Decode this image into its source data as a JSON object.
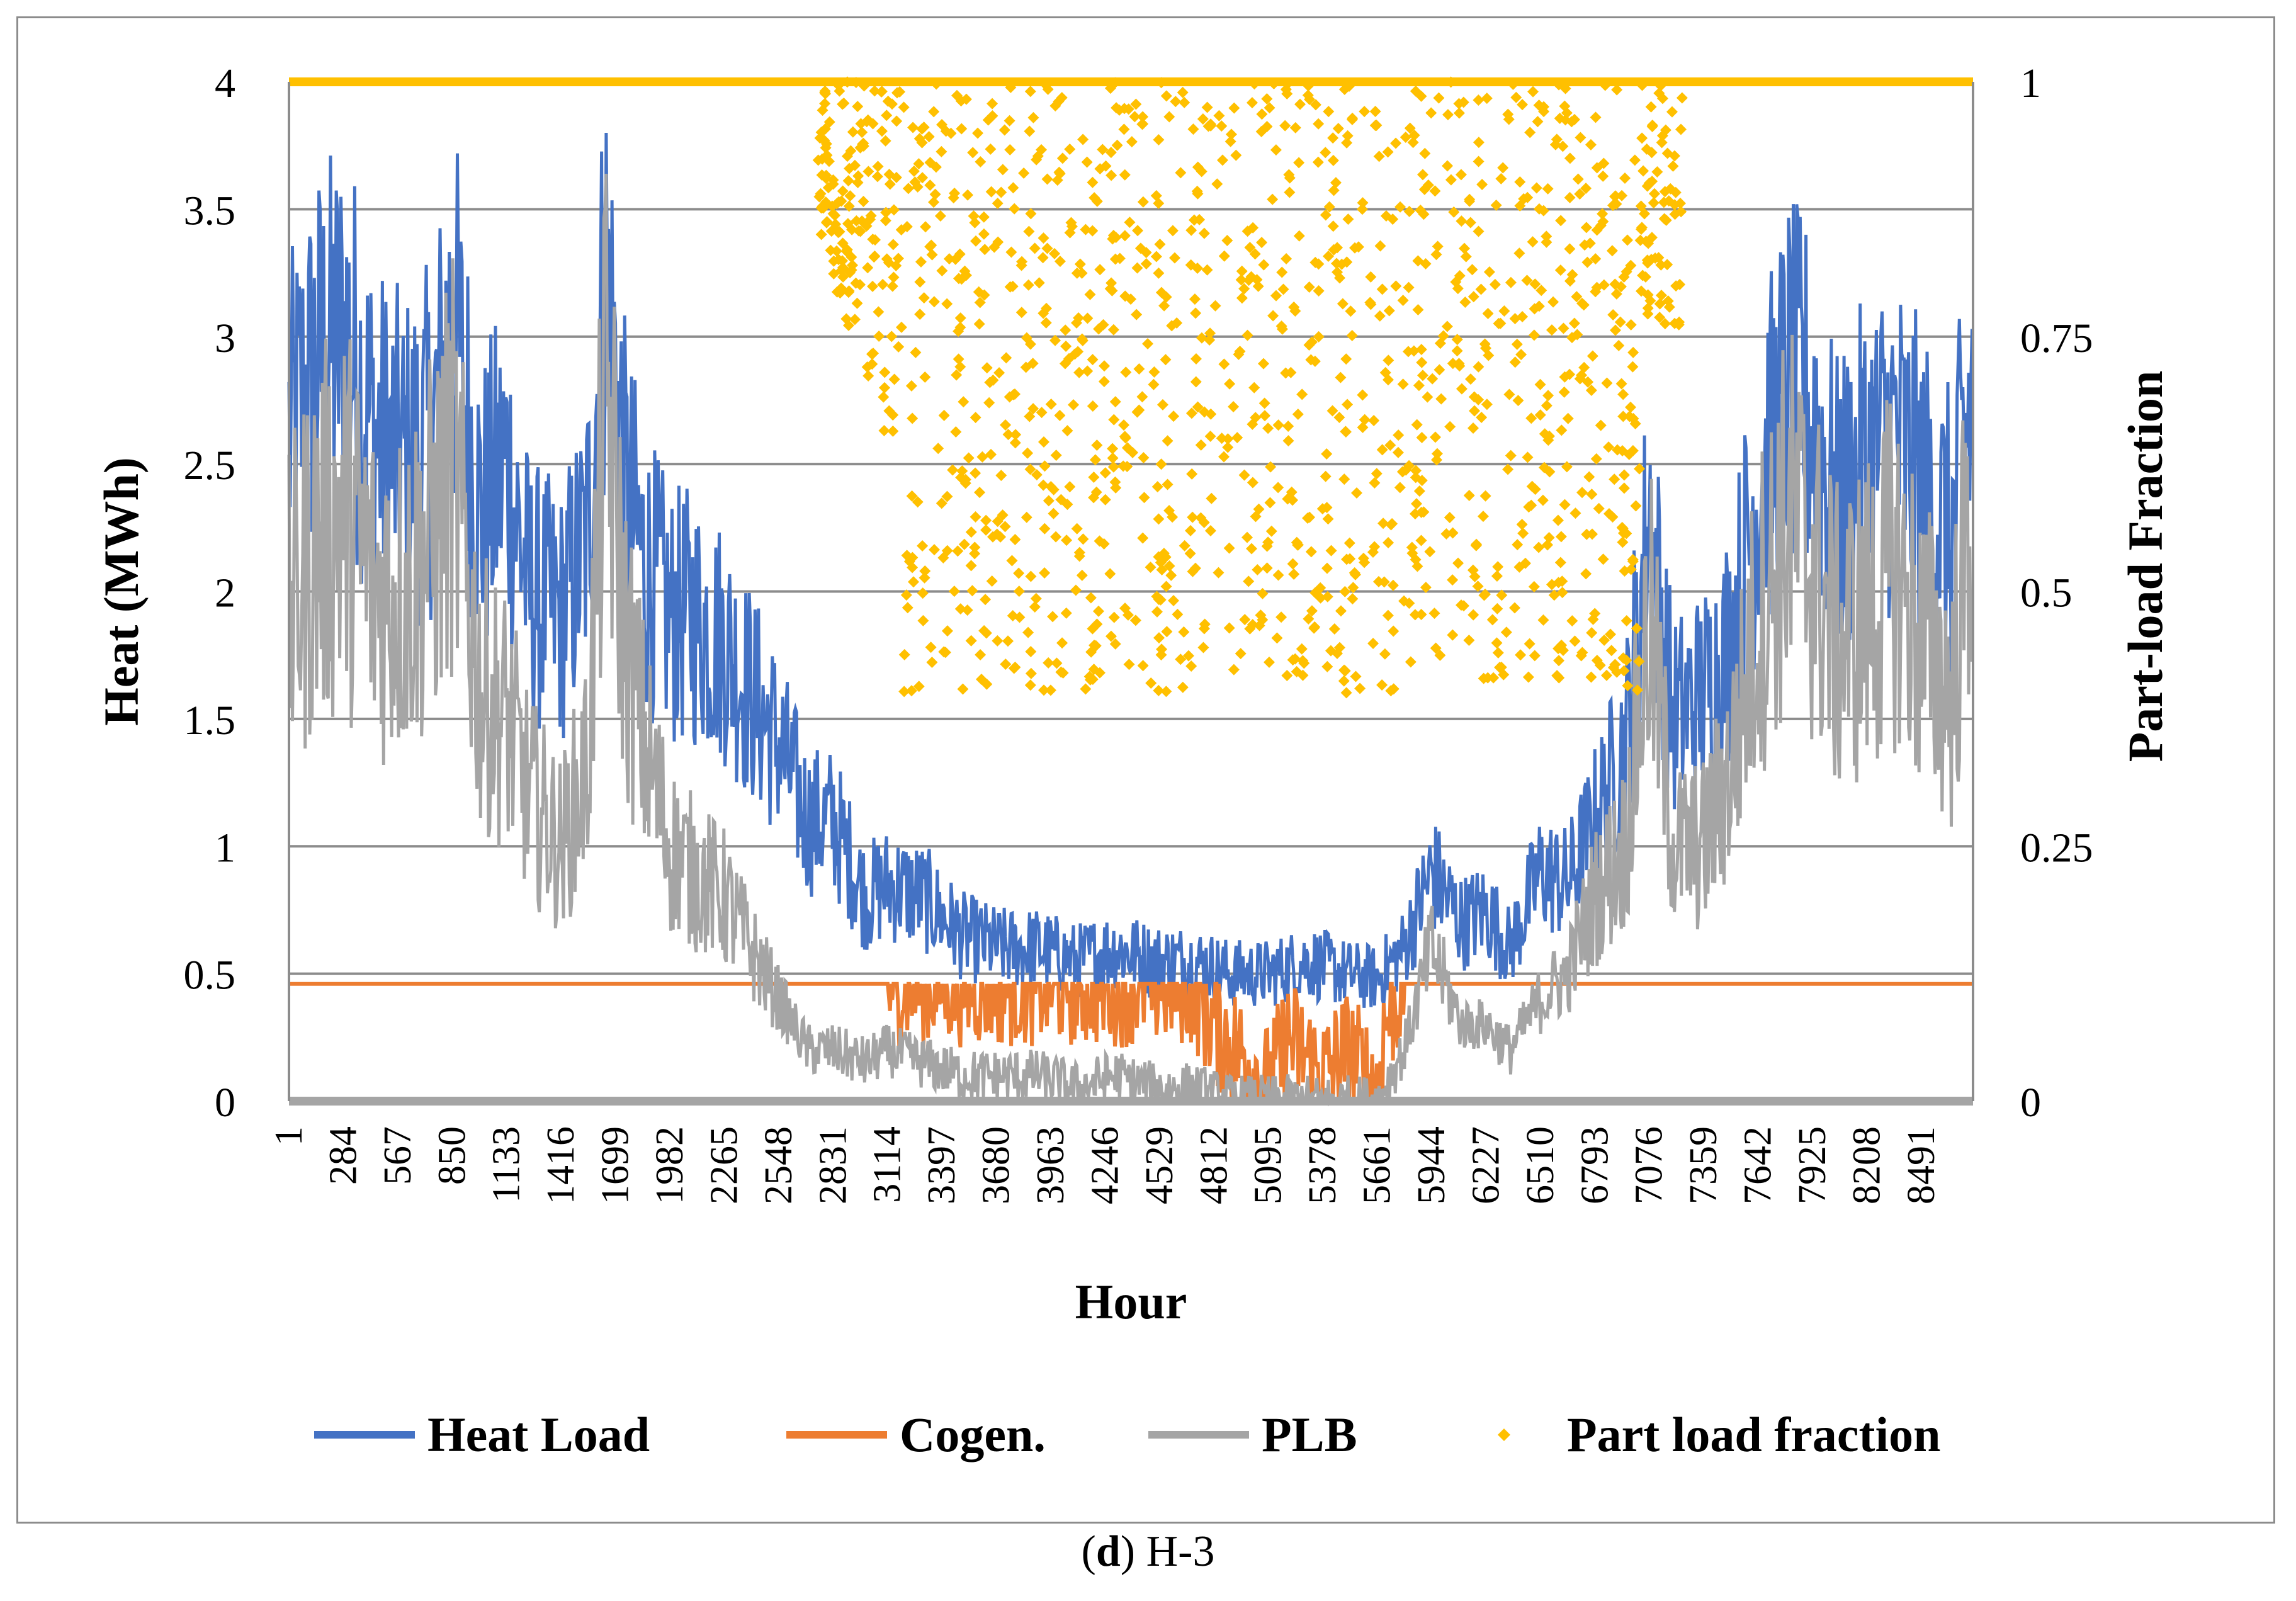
{
  "caption": {
    "label": "d",
    "text": "H-3"
  },
  "colors": {
    "heat_load": "#4472c4",
    "cogen": "#ed7d31",
    "plb": "#a5a5a5",
    "part_load_fraction": "#ffc000",
    "grid": "#8c8c8c"
  },
  "chart_data": {
    "type": "line",
    "title": "",
    "xlabel": "Hour",
    "ylabel": "Heat (MWh)",
    "y2label": "Part-load Fraction",
    "xlim": [
      1,
      8760
    ],
    "ylim": [
      0,
      4
    ],
    "y2lim": [
      0,
      1
    ],
    "x_tick_labels": [
      "1",
      "284",
      "567",
      "850",
      "1133",
      "1416",
      "1699",
      "1982",
      "2265",
      "2548",
      "2831",
      "3114",
      "3397",
      "3680",
      "3963",
      "4246",
      "4529",
      "4812",
      "5095",
      "5378",
      "5661",
      "5944",
      "6227",
      "6510",
      "6793",
      "7076",
      "7359",
      "7642",
      "7925",
      "8208",
      "8491"
    ],
    "y_tick_labels": [
      "0",
      "0.5",
      "1",
      "1.5",
      "2",
      "2.5",
      "3",
      "3.5",
      "4"
    ],
    "y2_tick_labels": [
      "0",
      "0.25",
      "0.5",
      "0.75",
      "1"
    ],
    "legend_position": "bottom",
    "series": [
      {
        "name": "Heat Load",
        "axis": "left",
        "style": "line",
        "x": [
          1,
          150,
          300,
          450,
          600,
          750,
          850,
          1000,
          1133,
          1250,
          1416,
          1550,
          1650,
          1750,
          1850,
          1982,
          2100,
          2265,
          2400,
          2548,
          2700,
          2831,
          3000,
          3114,
          3300,
          3500,
          3700,
          3900,
          4100,
          4300,
          4500,
          4700,
          4900,
          5095,
          5300,
          5500,
          5661,
          5800,
          5944,
          6100,
          6227,
          6350,
          6510,
          6650,
          6793,
          6950,
          7076,
          7200,
          7359,
          7500,
          7642,
          7800,
          7925,
          8050,
          8208,
          8350,
          8491,
          8650,
          8760
        ],
        "values": [
          2.6,
          2.9,
          3.0,
          2.6,
          2.5,
          2.6,
          3.1,
          2.3,
          2.5,
          2.0,
          1.9,
          2.2,
          3.3,
          2.4,
          2.1,
          1.9,
          1.9,
          1.8,
          1.6,
          1.4,
          1.1,
          1.1,
          0.8,
          0.85,
          0.8,
          0.65,
          0.6,
          0.6,
          0.55,
          0.6,
          0.55,
          0.55,
          0.5,
          0.5,
          0.55,
          0.5,
          0.48,
          0.6,
          0.9,
          0.7,
          0.75,
          0.6,
          0.9,
          0.85,
          1.1,
          1.4,
          2.3,
          1.5,
          1.6,
          1.8,
          2.4,
          2.8,
          2.7,
          2.3,
          2.5,
          2.6,
          2.4,
          2.2,
          2.8
        ]
      },
      {
        "name": "Cogen.",
        "axis": "left",
        "style": "line",
        "x": [
          1,
          4700,
          4812,
          5000,
          5095,
          5200,
          5378,
          5500,
          5661,
          5700,
          5800,
          8760
        ],
        "values": [
          0.46,
          0.46,
          0.3,
          0.15,
          0.05,
          0.25,
          0.1,
          0.2,
          0.05,
          0.3,
          0.46,
          0.46
        ]
      },
      {
        "name": "PLB",
        "axis": "left",
        "style": "line",
        "x": [
          1,
          150,
          300,
          450,
          600,
          750,
          850,
          1000,
          1133,
          1250,
          1416,
          1550,
          1650,
          1750,
          1850,
          1982,
          2100,
          2265,
          2400,
          2548,
          2700,
          2831,
          3000,
          3114,
          3300,
          3500,
          3700,
          3900,
          4100,
          4300,
          4500,
          4700,
          4900,
          5095,
          5300,
          5500,
          5661,
          5800,
          5944,
          6100,
          6227,
          6350,
          6510,
          6650,
          6793,
          6950,
          7076,
          7200,
          7359,
          7500,
          7642,
          7800,
          7925,
          8050,
          8208,
          8350,
          8491,
          8650,
          8760
        ],
        "values": [
          1.9,
          2.2,
          2.3,
          2.0,
          2.0,
          2.2,
          2.5,
          1.6,
          1.5,
          1.2,
          1.0,
          1.3,
          2.8,
          1.8,
          1.4,
          1.0,
          0.9,
          0.8,
          0.6,
          0.4,
          0.2,
          0.2,
          0.15,
          0.2,
          0.15,
          0.1,
          0.1,
          0.1,
          0.05,
          0.1,
          0.05,
          0.05,
          0.0,
          0.0,
          0.0,
          0.0,
          0.0,
          0.2,
          0.6,
          0.3,
          0.3,
          0.2,
          0.4,
          0.5,
          0.8,
          1.0,
          1.9,
          1.0,
          1.0,
          1.3,
          1.9,
          2.3,
          2.1,
          1.8,
          1.9,
          2.1,
          1.8,
          1.6,
          2.4
        ]
      },
      {
        "name": "Part load fraction",
        "axis": "right",
        "style": "markers",
        "baseline": 1.0,
        "scatter_x_range": [
          2750,
          7250
        ],
        "scatter_y_range": [
          0.4,
          1.0
        ]
      }
    ]
  },
  "legend": [
    "Heat Load",
    "Cogen.",
    "PLB",
    "Part load fraction"
  ]
}
